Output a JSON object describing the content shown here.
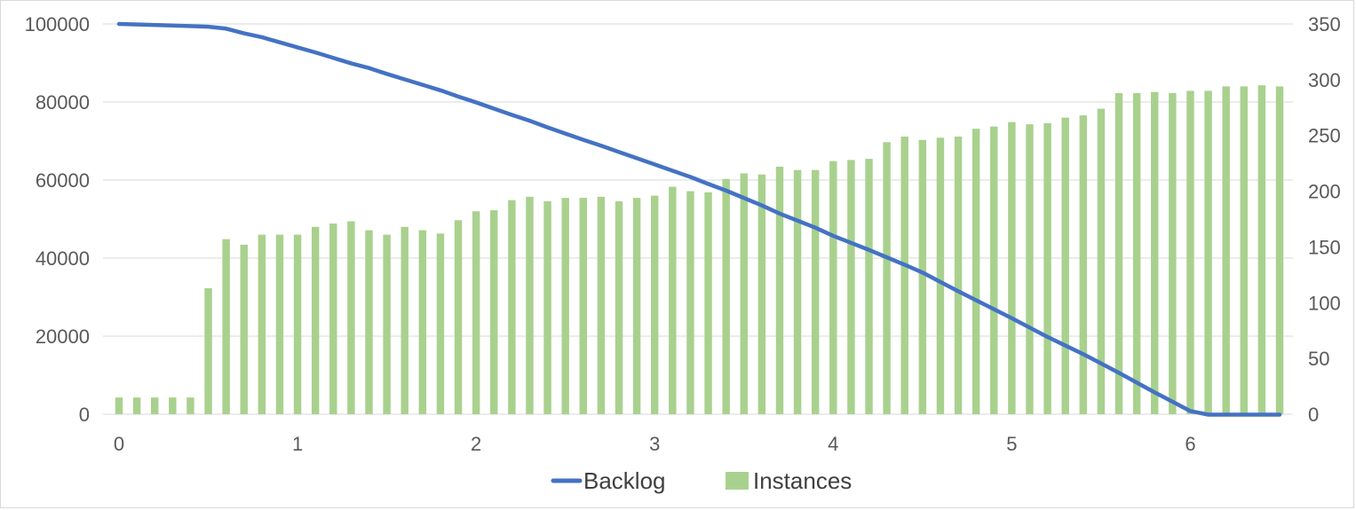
{
  "chart_data": {
    "type": "bar+line",
    "title": "",
    "xlabel": "",
    "ylabel": "",
    "y2label": "",
    "grid": true,
    "legend": "bottom",
    "xlim": [
      0,
      6.5
    ],
    "ylim": [
      0,
      100000
    ],
    "y2lim": [
      0,
      350
    ],
    "x_ticks": [
      "0",
      "1",
      "2",
      "3",
      "4",
      "5",
      "6"
    ],
    "y_ticks": [
      "0",
      "20000",
      "40000",
      "60000",
      "80000",
      "100000"
    ],
    "y2_ticks": [
      "0",
      "50",
      "100",
      "150",
      "200",
      "250",
      "300",
      "350"
    ],
    "colors": {
      "Backlog": "#4472c4",
      "Instances": "#a9d18e"
    },
    "series": [
      {
        "name": "Instances",
        "axis": "right",
        "type": "bar",
        "x": [
          0,
          0.1,
          0.2,
          0.3,
          0.4,
          0.5,
          0.6,
          0.7,
          0.8,
          0.9,
          1.0,
          1.1,
          1.2,
          1.3,
          1.4,
          1.5,
          1.6,
          1.7,
          1.8,
          1.9,
          2.0,
          2.1,
          2.2,
          2.3,
          2.4,
          2.5,
          2.6,
          2.7,
          2.8,
          2.9,
          3.0,
          3.1,
          3.2,
          3.3,
          3.4,
          3.5,
          3.6,
          3.7,
          3.8,
          3.9,
          4.0,
          4.1,
          4.2,
          4.3,
          4.4,
          4.5,
          4.6,
          4.7,
          4.8,
          4.9,
          5.0,
          5.1,
          5.2,
          5.3,
          5.4,
          5.5,
          5.6,
          5.7,
          5.8,
          5.9,
          6.0,
          6.1,
          6.2,
          6.3,
          6.4,
          6.5
        ],
        "values": [
          15,
          15,
          15,
          15,
          15,
          113,
          157,
          152,
          161,
          161,
          161,
          168,
          171,
          173,
          165,
          161,
          168,
          165,
          162,
          174,
          182,
          183,
          192,
          195,
          191,
          194,
          194,
          195,
          191,
          194,
          196,
          204,
          200,
          199,
          211,
          216,
          215,
          222,
          219,
          219,
          227,
          228,
          229,
          244,
          249,
          246,
          248,
          249,
          256,
          258,
          262,
          260,
          261,
          266,
          268,
          274,
          288,
          288,
          289,
          288,
          290,
          290,
          294,
          294,
          295,
          294
        ]
      },
      {
        "name": "Backlog",
        "axis": "left",
        "type": "line",
        "x": [
          0,
          0.3,
          0.5,
          0.6,
          0.7,
          0.8,
          0.9,
          1.0,
          1.1,
          1.2,
          1.3,
          1.4,
          1.5,
          1.6,
          1.7,
          1.8,
          1.9,
          2.0,
          2.1,
          2.2,
          2.3,
          2.4,
          2.5,
          2.6,
          2.7,
          2.8,
          2.9,
          3.0,
          3.1,
          3.2,
          3.3,
          3.4,
          3.5,
          3.6,
          3.7,
          3.8,
          3.9,
          4.0,
          4.1,
          4.2,
          4.3,
          4.4,
          4.5,
          4.6,
          4.7,
          4.8,
          4.9,
          5.0,
          5.1,
          5.2,
          5.3,
          5.4,
          5.5,
          5.6,
          5.7,
          5.8,
          5.9,
          6.0,
          6.1,
          6.2,
          6.3,
          6.4,
          6.5
        ],
        "values": [
          100000,
          99600,
          99300,
          98800,
          97600,
          96600,
          95300,
          94000,
          92700,
          91300,
          89900,
          88700,
          87200,
          85800,
          84400,
          83000,
          81400,
          79900,
          78300,
          76700,
          75200,
          73500,
          71900,
          70300,
          68800,
          67200,
          65600,
          64000,
          62400,
          60800,
          59000,
          57300,
          55400,
          53500,
          51400,
          49600,
          47800,
          45700,
          43900,
          42100,
          40200,
          38300,
          36300,
          33900,
          31500,
          29200,
          26900,
          24600,
          22200,
          19800,
          17600,
          15400,
          13000,
          10600,
          8100,
          5600,
          3200,
          800,
          -1700,
          -4300,
          -6900,
          -9300,
          -11800
        ]
      }
    ]
  }
}
